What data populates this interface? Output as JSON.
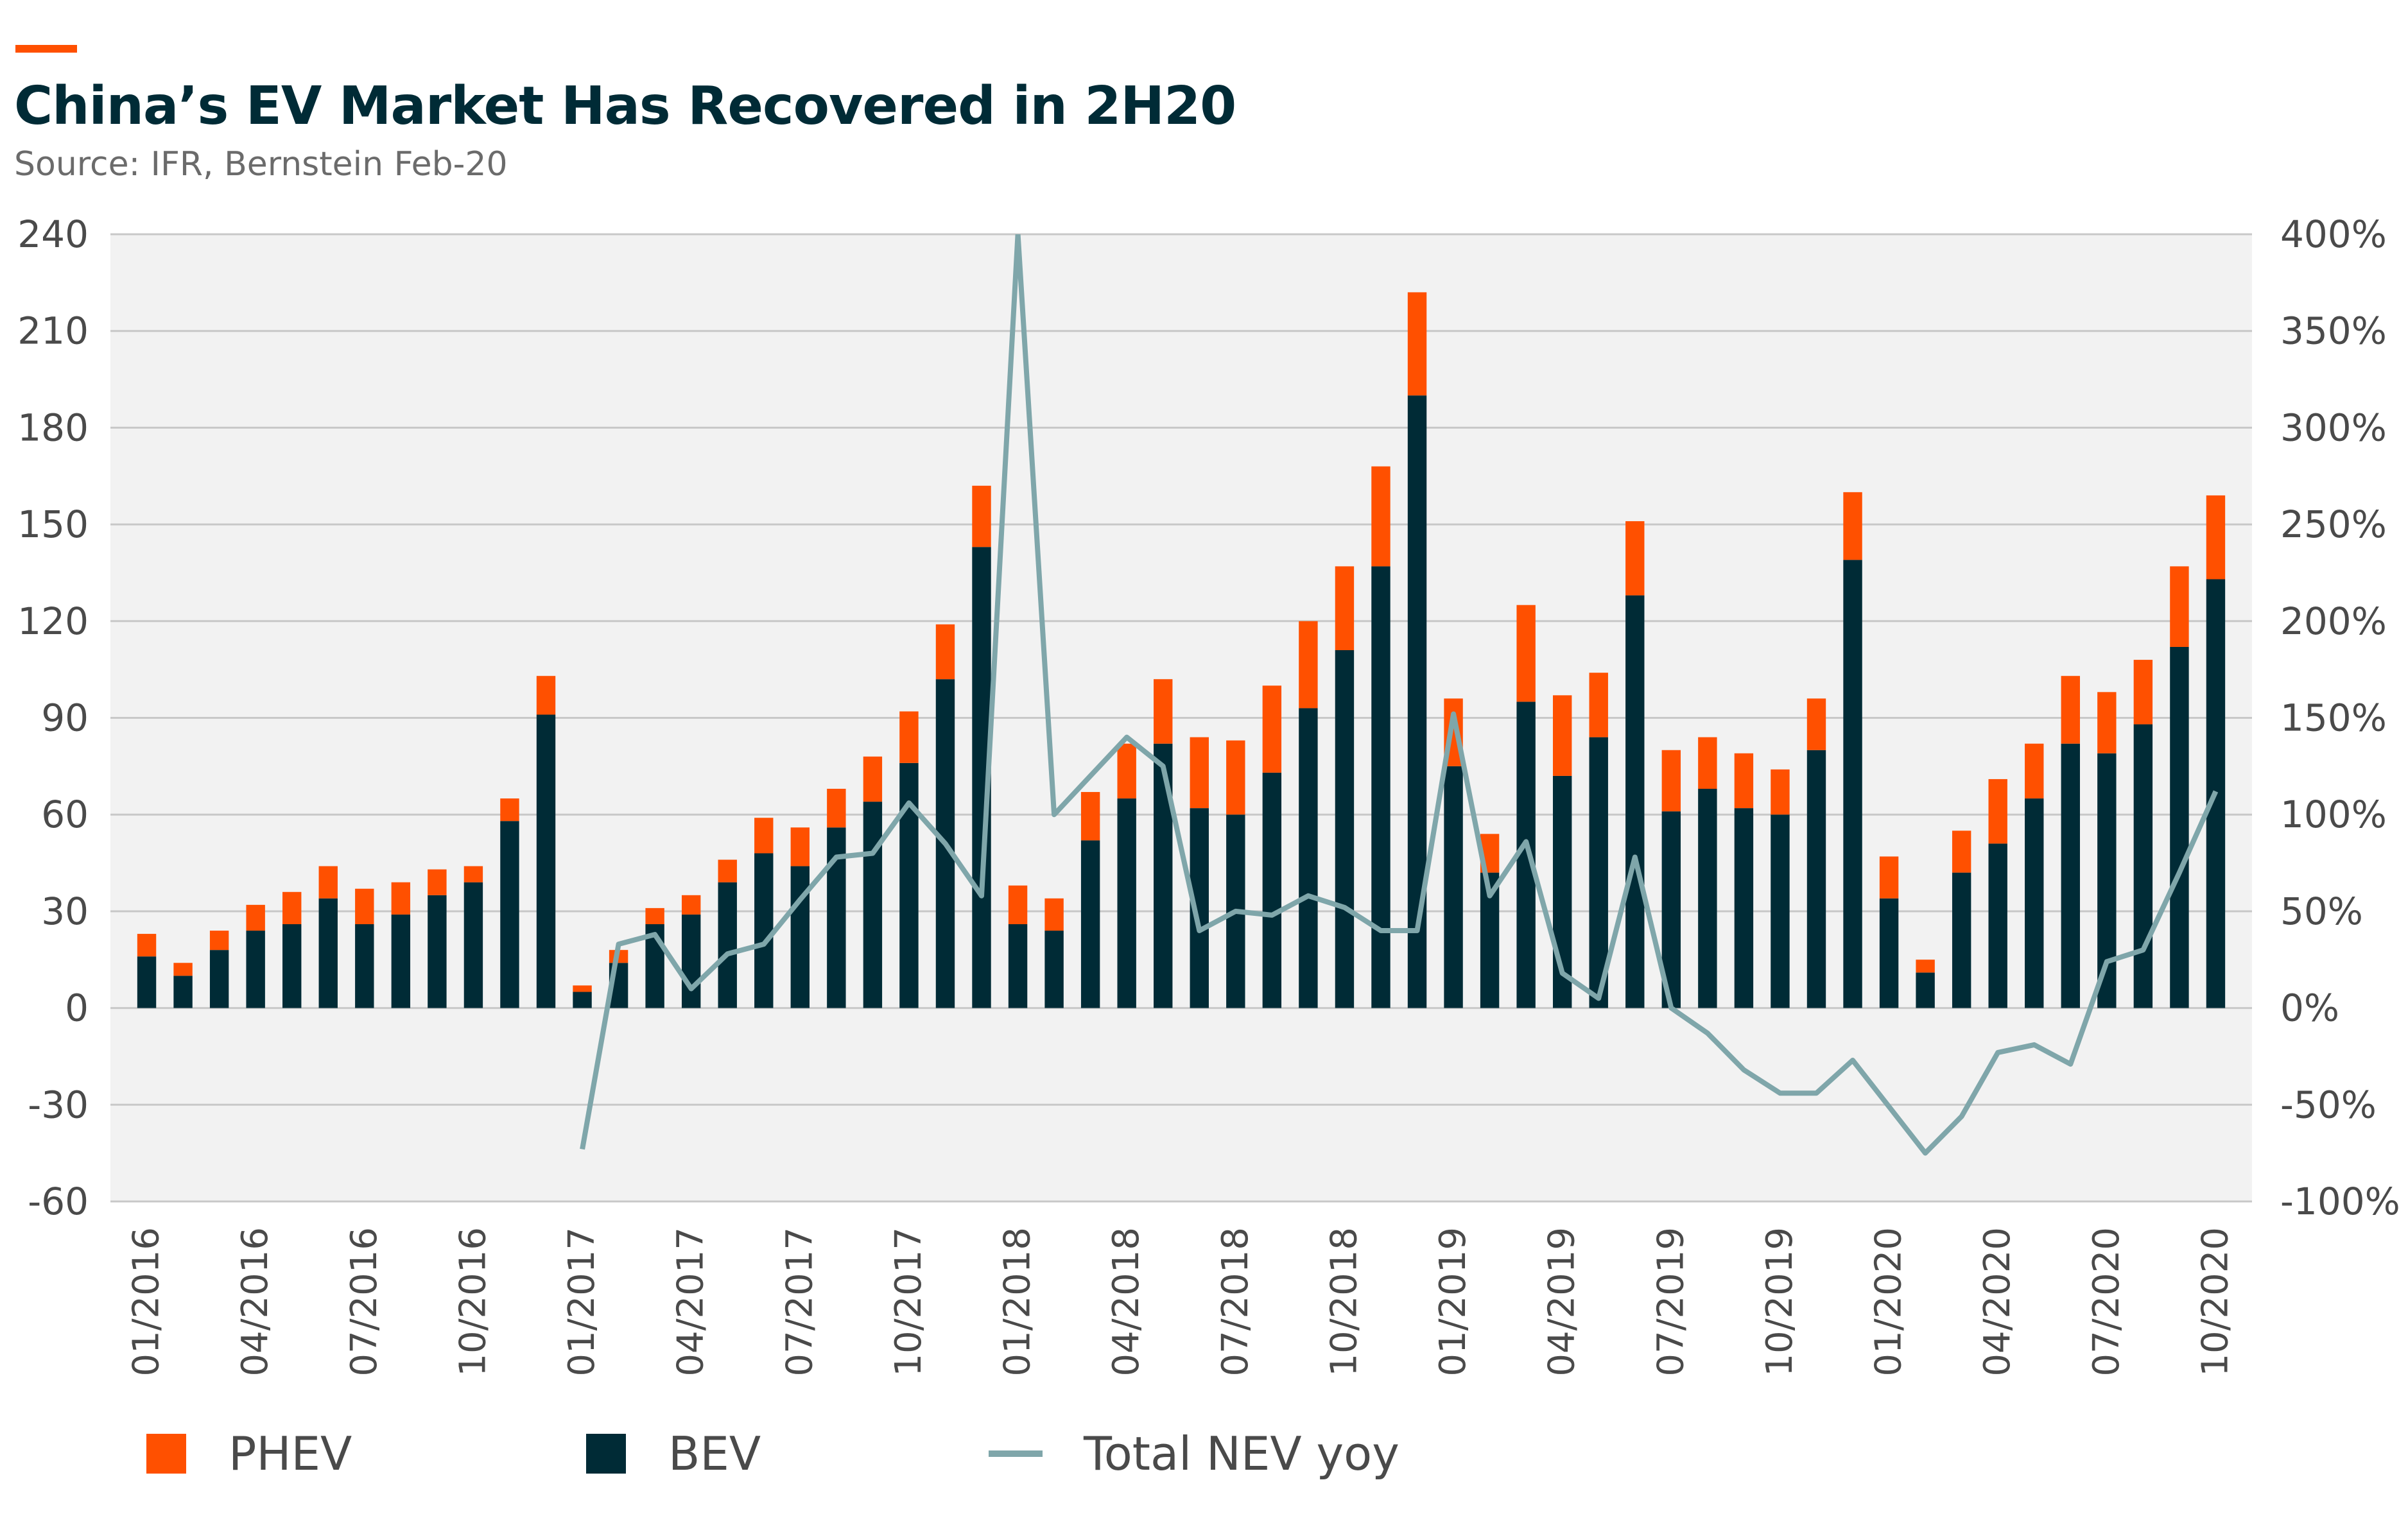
{
  "header": {
    "title": "China’s EV Market Has Recovered in 2H20",
    "subtitle": "Source: IFR, Bernstein Feb-20"
  },
  "colors": {
    "accent": "#FF5000",
    "phev": "#FF5000",
    "bev": "#002B36",
    "line": "#7FA6AA",
    "plot_bg": "#F2F2F2",
    "grid": "#C8C8C8"
  },
  "legend": {
    "phev_label": "PHEV",
    "bev_label": "BEV",
    "line_label": "Total NEV yoy"
  },
  "chart_data": {
    "type": "bar",
    "stacked": true,
    "title": "China’s EV Market Has Recovered in 2H20",
    "subtitle": "Source: IFR, Bernstein Feb-20",
    "categories": [
      "01/2016",
      "02/2016",
      "03/2016",
      "04/2016",
      "05/2016",
      "06/2016",
      "07/2016",
      "08/2016",
      "09/2016",
      "10/2016",
      "11/2016",
      "12/2016",
      "01/2017",
      "02/2017",
      "03/2017",
      "04/2017",
      "05/2017",
      "06/2017",
      "07/2017",
      "08/2017",
      "09/2017",
      "10/2017",
      "11/2017",
      "12/2017",
      "01/2018",
      "02/2018",
      "03/2018",
      "04/2018",
      "05/2018",
      "06/2018",
      "07/2018",
      "08/2018",
      "09/2018",
      "10/2018",
      "11/2018",
      "12/2018",
      "01/2019",
      "02/2019",
      "03/2019",
      "04/2019",
      "05/2019",
      "06/2019",
      "07/2019",
      "08/2019",
      "09/2019",
      "10/2019",
      "11/2019",
      "12/2019",
      "01/2020",
      "02/2020",
      "03/2020",
      "04/2020",
      "05/2020",
      "06/2020",
      "07/2020",
      "08/2020",
      "09/2020",
      "10/2020"
    ],
    "x_tick_labels": [
      "01/2016",
      "04/2016",
      "07/2016",
      "10/2016",
      "01/2017",
      "04/2017",
      "07/2017",
      "10/2017",
      "01/2018",
      "04/2018",
      "07/2018",
      "10/2018",
      "01/2019",
      "04/2019",
      "07/2019",
      "10/2019",
      "01/2020",
      "04/2020",
      "07/2020",
      "10/2020"
    ],
    "series": [
      {
        "name": "BEV",
        "type": "bar",
        "axis": "left",
        "values": [
          16,
          10,
          18,
          24,
          26,
          34,
          26,
          29,
          35,
          39,
          58,
          91,
          5,
          14,
          26,
          29,
          39,
          48,
          44,
          56,
          64,
          76,
          102,
          143,
          26,
          24,
          52,
          65,
          82,
          62,
          60,
          73,
          93,
          111,
          137,
          190,
          75,
          42,
          95,
          72,
          84,
          128,
          61,
          68,
          62,
          60,
          80,
          139,
          34,
          11,
          42,
          51,
          65,
          82,
          79,
          88,
          112,
          133
        ]
      },
      {
        "name": "PHEV",
        "type": "bar",
        "axis": "left",
        "values": [
          7,
          4,
          6,
          8,
          10,
          10,
          11,
          10,
          8,
          5,
          7,
          12,
          2,
          4,
          5,
          6,
          7,
          11,
          12,
          12,
          14,
          16,
          17,
          19,
          12,
          10,
          15,
          17,
          20,
          22,
          23,
          27,
          27,
          26,
          31,
          32,
          21,
          12,
          30,
          25,
          20,
          23,
          19,
          16,
          17,
          14,
          16,
          21,
          13,
          4,
          13,
          20,
          17,
          21,
          19,
          20,
          25,
          26
        ]
      },
      {
        "name": "Total NEV yoy",
        "type": "line",
        "axis": "right",
        "values": [
          null,
          null,
          null,
          null,
          null,
          null,
          null,
          null,
          null,
          null,
          null,
          null,
          -73,
          33,
          38,
          10,
          28,
          33,
          56,
          78,
          80,
          106,
          85,
          58,
          400,
          100,
          120,
          140,
          125,
          40,
          50,
          48,
          58,
          52,
          40,
          40,
          152,
          58,
          86,
          18,
          5,
          78,
          0,
          -13,
          -32,
          -44,
          -44,
          -27,
          -51,
          -75,
          -56,
          -23,
          -19,
          -29,
          24,
          30,
          70,
          112
        ]
      }
    ],
    "ylim": [
      -60,
      240
    ],
    "y_ticks": [
      -60,
      -30,
      0,
      30,
      60,
      90,
      120,
      150,
      180,
      210,
      240
    ],
    "y2lim": [
      -100,
      400
    ],
    "y2_ticks": [
      "-100%",
      "-50%",
      "0%",
      "50%",
      "100%",
      "150%",
      "200%",
      "250%",
      "300%",
      "350%",
      "400%"
    ],
    "grid": "horizontal",
    "legend_position": "bottom"
  }
}
